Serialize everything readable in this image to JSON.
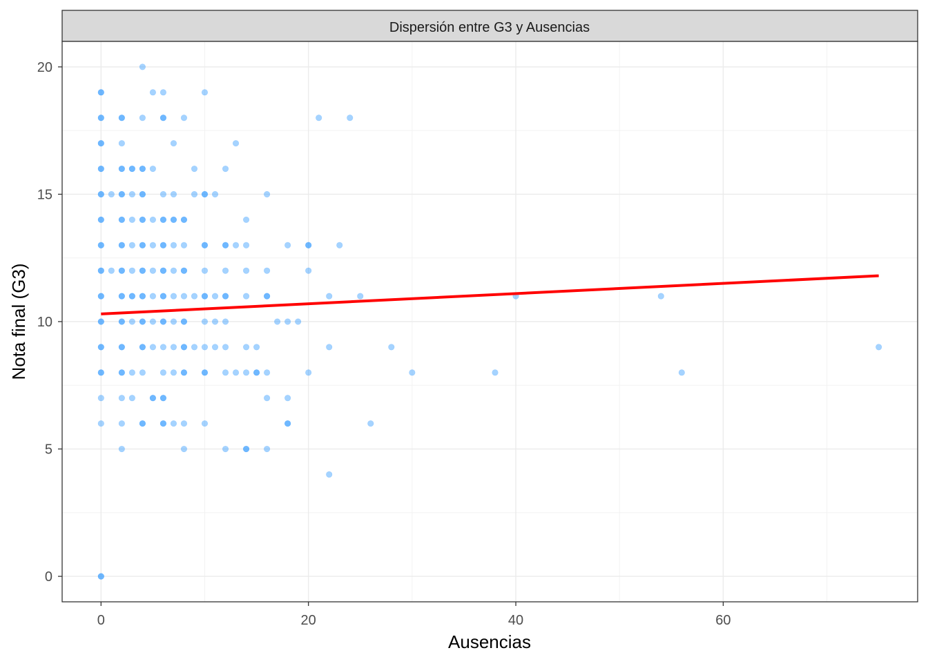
{
  "chart_data": {
    "type": "scatter",
    "title": "Dispersión entre G3 y Ausencias",
    "xlabel": "Ausencias",
    "ylabel": "Nota final (G3)",
    "xlim": [
      -3.75,
      78.75
    ],
    "ylim": [
      -1,
      21
    ],
    "x_ticks": [
      0,
      20,
      40,
      60
    ],
    "y_ticks": [
      0,
      5,
      10,
      15,
      20
    ],
    "grid": true,
    "legend": "none",
    "colors": {
      "points": "#1E90FF",
      "trend": "#FF0000",
      "strip": "#D9D9D9"
    },
    "trend_line": {
      "x": [
        0,
        75
      ],
      "y": [
        10.3,
        11.8
      ]
    },
    "points": [
      [
        0,
        0
      ],
      [
        0,
        0
      ],
      [
        0,
        6
      ],
      [
        0,
        7
      ],
      [
        0,
        8
      ],
      [
        0,
        8
      ],
      [
        0,
        9
      ],
      [
        0,
        9
      ],
      [
        0,
        10
      ],
      [
        0,
        10
      ],
      [
        0,
        11
      ],
      [
        0,
        11
      ],
      [
        0,
        12
      ],
      [
        0,
        12
      ],
      [
        0,
        13
      ],
      [
        0,
        13
      ],
      [
        0,
        14
      ],
      [
        0,
        14
      ],
      [
        0,
        15
      ],
      [
        0,
        15
      ],
      [
        0,
        16
      ],
      [
        0,
        16
      ],
      [
        0,
        17
      ],
      [
        0,
        17
      ],
      [
        0,
        18
      ],
      [
        0,
        18
      ],
      [
        0,
        19
      ],
      [
        0,
        19
      ],
      [
        1,
        12
      ],
      [
        1,
        15
      ],
      [
        2,
        5
      ],
      [
        2,
        6
      ],
      [
        2,
        7
      ],
      [
        2,
        8
      ],
      [
        2,
        8
      ],
      [
        2,
        9
      ],
      [
        2,
        9
      ],
      [
        2,
        10
      ],
      [
        2,
        10
      ],
      [
        2,
        11
      ],
      [
        2,
        11
      ],
      [
        2,
        12
      ],
      [
        2,
        12
      ],
      [
        2,
        13
      ],
      [
        2,
        13
      ],
      [
        2,
        14
      ],
      [
        2,
        14
      ],
      [
        2,
        15
      ],
      [
        2,
        15
      ],
      [
        2,
        16
      ],
      [
        2,
        16
      ],
      [
        2,
        17
      ],
      [
        2,
        18
      ],
      [
        2,
        18
      ],
      [
        3,
        7
      ],
      [
        3,
        8
      ],
      [
        3,
        10
      ],
      [
        3,
        11
      ],
      [
        3,
        11
      ],
      [
        3,
        12
      ],
      [
        3,
        13
      ],
      [
        3,
        14
      ],
      [
        3,
        15
      ],
      [
        3,
        16
      ],
      [
        3,
        16
      ],
      [
        4,
        6
      ],
      [
        4,
        6
      ],
      [
        4,
        8
      ],
      [
        4,
        9
      ],
      [
        4,
        9
      ],
      [
        4,
        10
      ],
      [
        4,
        10
      ],
      [
        4,
        11
      ],
      [
        4,
        11
      ],
      [
        4,
        12
      ],
      [
        4,
        12
      ],
      [
        4,
        13
      ],
      [
        4,
        13
      ],
      [
        4,
        14
      ],
      [
        4,
        14
      ],
      [
        4,
        15
      ],
      [
        4,
        15
      ],
      [
        4,
        16
      ],
      [
        4,
        16
      ],
      [
        4,
        18
      ],
      [
        4,
        20
      ],
      [
        5,
        7
      ],
      [
        5,
        7
      ],
      [
        5,
        9
      ],
      [
        5,
        10
      ],
      [
        5,
        11
      ],
      [
        5,
        12
      ],
      [
        5,
        13
      ],
      [
        5,
        14
      ],
      [
        5,
        16
      ],
      [
        5,
        19
      ],
      [
        6,
        6
      ],
      [
        6,
        6
      ],
      [
        6,
        7
      ],
      [
        6,
        7
      ],
      [
        6,
        8
      ],
      [
        6,
        9
      ],
      [
        6,
        10
      ],
      [
        6,
        10
      ],
      [
        6,
        11
      ],
      [
        6,
        11
      ],
      [
        6,
        12
      ],
      [
        6,
        12
      ],
      [
        6,
        13
      ],
      [
        6,
        13
      ],
      [
        6,
        14
      ],
      [
        6,
        14
      ],
      [
        6,
        15
      ],
      [
        6,
        18
      ],
      [
        6,
        18
      ],
      [
        6,
        19
      ],
      [
        7,
        6
      ],
      [
        7,
        8
      ],
      [
        7,
        9
      ],
      [
        7,
        10
      ],
      [
        7,
        11
      ],
      [
        7,
        12
      ],
      [
        7,
        13
      ],
      [
        7,
        14
      ],
      [
        7,
        14
      ],
      [
        7,
        15
      ],
      [
        7,
        17
      ],
      [
        8,
        5
      ],
      [
        8,
        6
      ],
      [
        8,
        8
      ],
      [
        8,
        8
      ],
      [
        8,
        9
      ],
      [
        8,
        9
      ],
      [
        8,
        10
      ],
      [
        8,
        10
      ],
      [
        8,
        11
      ],
      [
        8,
        12
      ],
      [
        8,
        12
      ],
      [
        8,
        13
      ],
      [
        8,
        14
      ],
      [
        8,
        14
      ],
      [
        8,
        18
      ],
      [
        9,
        9
      ],
      [
        9,
        11
      ],
      [
        9,
        15
      ],
      [
        9,
        16
      ],
      [
        10,
        6
      ],
      [
        10,
        8
      ],
      [
        10,
        8
      ],
      [
        10,
        9
      ],
      [
        10,
        10
      ],
      [
        10,
        11
      ],
      [
        10,
        11
      ],
      [
        10,
        12
      ],
      [
        10,
        13
      ],
      [
        10,
        13
      ],
      [
        10,
        15
      ],
      [
        10,
        15
      ],
      [
        10,
        19
      ],
      [
        11,
        9
      ],
      [
        11,
        10
      ],
      [
        11,
        11
      ],
      [
        11,
        15
      ],
      [
        12,
        5
      ],
      [
        12,
        8
      ],
      [
        12,
        9
      ],
      [
        12,
        10
      ],
      [
        12,
        11
      ],
      [
        12,
        11
      ],
      [
        12,
        12
      ],
      [
        12,
        13
      ],
      [
        12,
        13
      ],
      [
        12,
        16
      ],
      [
        13,
        8
      ],
      [
        13,
        13
      ],
      [
        13,
        17
      ],
      [
        14,
        5
      ],
      [
        14,
        5
      ],
      [
        14,
        8
      ],
      [
        14,
        9
      ],
      [
        14,
        11
      ],
      [
        14,
        12
      ],
      [
        14,
        13
      ],
      [
        14,
        14
      ],
      [
        15,
        8
      ],
      [
        15,
        8
      ],
      [
        15,
        9
      ],
      [
        16,
        5
      ],
      [
        16,
        7
      ],
      [
        16,
        8
      ],
      [
        16,
        11
      ],
      [
        16,
        11
      ],
      [
        16,
        12
      ],
      [
        16,
        15
      ],
      [
        17,
        10
      ],
      [
        18,
        6
      ],
      [
        18,
        6
      ],
      [
        18,
        7
      ],
      [
        18,
        10
      ],
      [
        18,
        13
      ],
      [
        19,
        10
      ],
      [
        20,
        8
      ],
      [
        20,
        12
      ],
      [
        20,
        13
      ],
      [
        20,
        13
      ],
      [
        21,
        18
      ],
      [
        22,
        4
      ],
      [
        22,
        9
      ],
      [
        22,
        11
      ],
      [
        23,
        13
      ],
      [
        24,
        18
      ],
      [
        25,
        11
      ],
      [
        26,
        6
      ],
      [
        28,
        9
      ],
      [
        30,
        8
      ],
      [
        38,
        8
      ],
      [
        40,
        11
      ],
      [
        54,
        11
      ],
      [
        56,
        8
      ],
      [
        75,
        9
      ]
    ]
  }
}
